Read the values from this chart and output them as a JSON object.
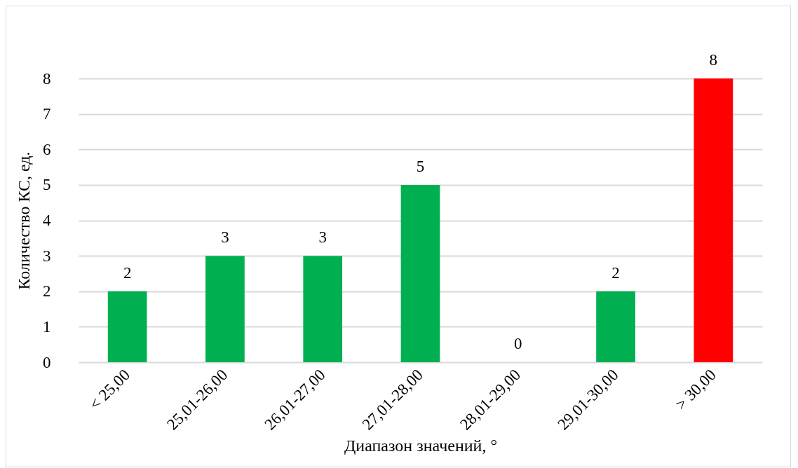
{
  "chart_data": {
    "type": "bar",
    "xlabel": "Диапазон значений, °",
    "ylabel": "Количество КС, ед.",
    "categories": [
      "< 25,00",
      "25,01-26,00",
      "26,01-27,00",
      "27,01-28,00",
      "28,01-29,00",
      "29,01-30,00",
      "> 30,00"
    ],
    "values": [
      2,
      3,
      3,
      5,
      0,
      2,
      8
    ],
    "colors": [
      "#00b050",
      "#00b050",
      "#00b050",
      "#00b050",
      "#00b050",
      "#00b050",
      "#ff0000"
    ],
    "ylim": [
      0,
      8
    ],
    "yticks": [
      0,
      1,
      2,
      3,
      4,
      5,
      6,
      7,
      8
    ],
    "grid": "y",
    "data_labels": true
  }
}
